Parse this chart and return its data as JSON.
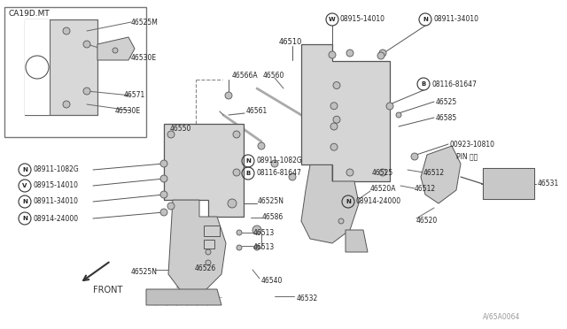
{
  "bg_color": "#f0f0f0",
  "line_color": "#555555",
  "fill_light": "#e0e0e0",
  "fill_mid": "#cccccc",
  "text_color": "#222222",
  "watermark": "A/65A0064",
  "model_label": "CA19D.MT",
  "front_label": "FRONT",
  "figw": 6.4,
  "figh": 3.72,
  "dpi": 100
}
